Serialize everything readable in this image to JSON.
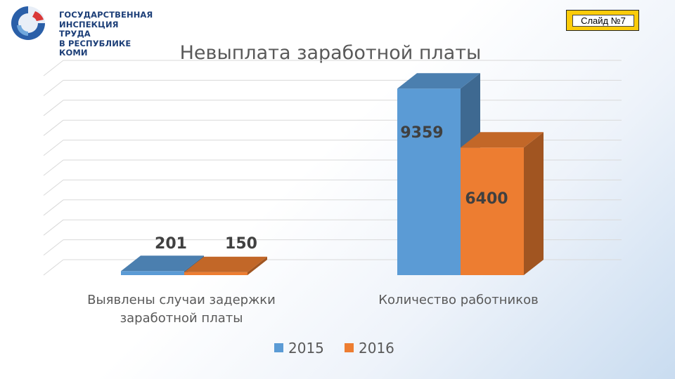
{
  "header": {
    "logo_lines": [
      "ГОСУДАРСТВЕННАЯ",
      "ИНСПЕКЦИЯ ТРУДА",
      "В РЕСПУБЛИКЕ КОМИ"
    ],
    "slide_label": "Слайд №7"
  },
  "colors": {
    "series_2015": "#5b9bd5",
    "series_2016": "#ed7d31",
    "logo_blue": "#1d3f78",
    "badge": "#fccb0a"
  },
  "chart_data": {
    "type": "bar",
    "title": "Невыплата заработной платы",
    "categories": [
      [
        "Выявлены случаи задержки",
        "заработной платы"
      ],
      [
        "Количество работников"
      ]
    ],
    "series": [
      {
        "name": "2015",
        "values": [
          201,
          9359
        ],
        "labels": [
          "201",
          "9359"
        ]
      },
      {
        "name": "2016",
        "values": [
          150,
          6400
        ],
        "labels": [
          "150",
          "6400"
        ]
      }
    ],
    "ylim": [
      0,
      10000
    ],
    "grid": true,
    "legend_position": "bottom",
    "style": "3d-clustered-column"
  }
}
